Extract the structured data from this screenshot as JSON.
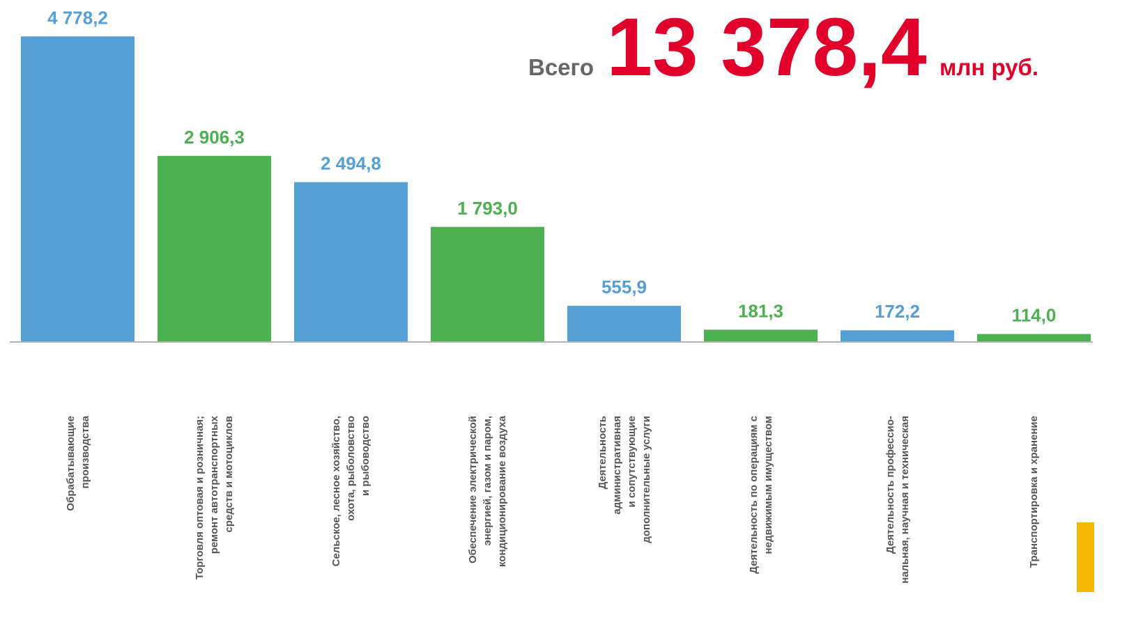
{
  "chart_data": {
    "type": "bar",
    "annotations": [
      "Всего",
      "13 378,4",
      "млн руб."
    ],
    "categories": [
      "Обрабатывающие\nпроизводства",
      "Торговля оптовая и розничная;\nремонт автотранспортных\nсредств   и мотоциклов",
      "Сельское, лесное хозяйство,\nохота, рыболовство\nи рыбоводство",
      "Обеспечение  электрической\nэнергией, газом и паром,\nкондиционирование воздуха",
      "Деятельность\nадминистративная\nи сопутствующие\nдополнительные  услуги",
      "Деятельность по операциям с\nнедвижимым имуществом",
      "Деятельность  профессио-\nнальная, научная и техническая",
      "Транспортировка и хранение"
    ],
    "values": [
      4778.2,
      2906.3,
      2494.8,
      1793.0,
      555.9,
      181.3,
      172.2,
      114.0
    ],
    "value_labels": [
      "4 778,2",
      "2 906,3",
      "2 494,8",
      "1 793,0",
      "555,9",
      "181,3",
      "172,2",
      "114,0"
    ],
    "colors": [
      "#539fd6",
      "#4caf50",
      "#539fd6",
      "#4caf50",
      "#539fd6",
      "#4caf50",
      "#539fd6",
      "#4caf50"
    ],
    "ylim": [
      0,
      5000
    ]
  }
}
